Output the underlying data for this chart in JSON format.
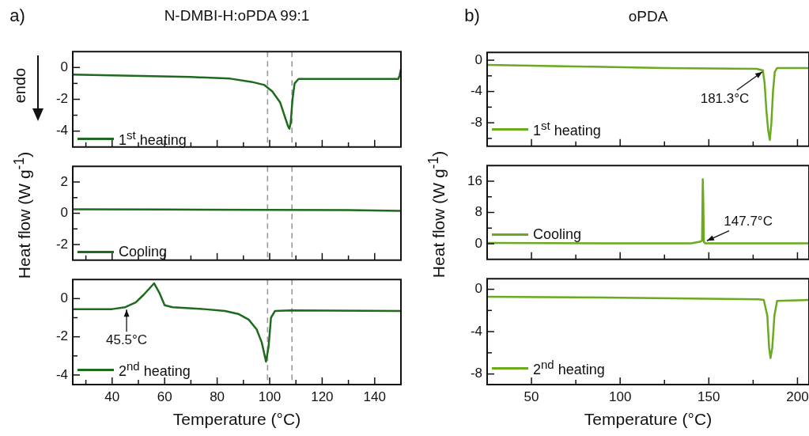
{
  "chart_data": [
    {
      "type": "line",
      "title": "N-DMBI-H:oPDA 99:1",
      "annotations": [
        "a)",
        "endo"
      ],
      "tick_labels": "y",
      "legend": "bottom left",
      "xlim": [
        25,
        150
      ],
      "ylim": [
        -5,
        1
      ],
      "xticks": [
        {
          "value": 30,
          "label": null
        },
        40,
        {
          "value": 50,
          "label": null
        },
        60,
        {
          "value": 70,
          "label": null
        },
        80,
        {
          "value": 90,
          "label": null
        },
        100,
        {
          "value": 110,
          "label": null
        },
        120,
        {
          "value": 130,
          "label": null
        },
        140
      ],
      "yticks": [
        -4,
        {
          "value": -3,
          "label": null
        },
        -2,
        {
          "value": -1,
          "label": null
        },
        0
      ],
      "ref_lines": [
        {
          "axis": "x",
          "value": 99.2,
          "color": "#999999",
          "line_style": "dashed"
        },
        {
          "axis": "x",
          "value": 108.5,
          "color": "#999999",
          "line_style": "dashed"
        }
      ],
      "series": [
        {
          "name": "1$^{st}$ heating",
          "color": "#1e6b1e",
          "x": [
            25,
            40,
            55,
            70,
            85,
            93,
            98,
            101,
            104,
            106,
            107,
            107.5,
            108,
            108.7,
            109.5,
            111,
            120,
            135,
            149,
            149.5,
            150
          ],
          "values": [
            -0.45,
            -0.5,
            -0.55,
            -0.6,
            -0.7,
            -0.9,
            -1.1,
            -1.5,
            -2.2,
            -3.2,
            -3.7,
            -3.85,
            -3.5,
            -2,
            -1,
            -0.72,
            -0.72,
            -0.72,
            -0.72,
            -0.5,
            -0.1
          ]
        }
      ]
    },
    {
      "type": "line",
      "ylabel": "Heat flow (W g$^{-1}$)",
      "tick_labels": "y",
      "legend": "bottom left",
      "xlim": [
        25,
        150
      ],
      "ylim": [
        -3,
        3
      ],
      "xticks": [
        {
          "value": 30,
          "label": null
        },
        40,
        {
          "value": 50,
          "label": null
        },
        60,
        {
          "value": 70,
          "label": null
        },
        80,
        {
          "value": 90,
          "label": null
        },
        100,
        {
          "value": 110,
          "label": null
        },
        120,
        {
          "value": 130,
          "label": null
        },
        140
      ],
      "yticks": [
        -2,
        {
          "value": -1,
          "label": null
        },
        0,
        {
          "value": 1,
          "label": null
        },
        2
      ],
      "ref_lines": [
        {
          "axis": "x",
          "value": 99.2,
          "color": "#999999",
          "line_style": "dashed"
        },
        {
          "axis": "x",
          "value": 108.5,
          "color": "#999999",
          "line_style": "dashed"
        }
      ],
      "series": [
        {
          "name": "Cooling",
          "color": "#1e6b1e",
          "x": [
            25,
            60,
            100,
            130,
            150
          ],
          "values": [
            0.25,
            0.24,
            0.22,
            0.2,
            0.15
          ]
        }
      ]
    },
    {
      "type": "line",
      "xlabel": "Temperature (°C)",
      "annotations": [
        {
          "text": "45.5°C",
          "x": 45.5,
          "y": -0.45
        }
      ],
      "legend": "bottom left",
      "xlim": [
        25,
        150
      ],
      "ylim": [
        -4.5,
        1
      ],
      "xticks": [
        {
          "value": 30,
          "label": null
        },
        40,
        {
          "value": 50,
          "label": null
        },
        60,
        {
          "value": 70,
          "label": null
        },
        80,
        {
          "value": 90,
          "label": null
        },
        100,
        {
          "value": 110,
          "label": null
        },
        120,
        {
          "value": 130,
          "label": null
        },
        140
      ],
      "yticks": [
        -4,
        {
          "value": -3,
          "label": null
        },
        -2,
        {
          "value": -1,
          "label": null
        },
        0
      ],
      "ref_lines": [
        {
          "axis": "x",
          "value": 99.2,
          "color": "#999999",
          "line_style": "dashed"
        },
        {
          "axis": "x",
          "value": 108.5,
          "color": "#999999",
          "line_style": "dashed"
        }
      ],
      "series": [
        {
          "name": "2$^{nd}$ heating",
          "color": "#1e6b1e",
          "x": [
            25,
            40,
            45,
            49,
            52,
            54,
            56,
            58,
            60,
            63,
            75,
            83,
            88,
            92,
            95,
            97,
            98.6,
            99.6,
            100.5,
            102,
            108,
            150
          ],
          "values": [
            -0.55,
            -0.55,
            -0.45,
            -0.2,
            0.2,
            0.5,
            0.8,
            0.3,
            -0.35,
            -0.45,
            -0.55,
            -0.65,
            -0.8,
            -1.1,
            -1.6,
            -2.3,
            -3.3,
            -2.5,
            -1,
            -0.65,
            -0.62,
            -0.65
          ]
        }
      ]
    },
    {
      "type": "line",
      "title": "oPDA",
      "annotations": [
        "b)",
        {
          "text": "181.3°C",
          "x": 181.3,
          "y": -1.3
        }
      ],
      "tick_labels": "y",
      "legend": "bottom left",
      "xlim": [
        25,
        206.5
      ],
      "ylim": [
        -11,
        1
      ],
      "xticks": [
        50,
        {
          "value": 75,
          "label": null
        },
        100,
        {
          "value": 125,
          "label": null
        },
        150,
        {
          "value": 175,
          "label": null
        },
        200
      ],
      "yticks": [
        {
          "value": -10,
          "label": null
        },
        -8,
        {
          "value": -6,
          "label": null
        },
        -4,
        {
          "value": -2,
          "label": null
        },
        0
      ],
      "series": [
        {
          "name": "1$^{st}$ heating",
          "color": "#6aaa1e",
          "x": [
            25,
            75,
            125,
            177,
            180.5,
            181.5,
            182.5,
            183.5,
            184.4,
            185.3,
            186.2,
            187.2,
            188.5,
            206.5
          ],
          "values": [
            -0.6,
            -0.8,
            -1,
            -1.1,
            -1.3,
            -3,
            -6.5,
            -9,
            -10.2,
            -8,
            -4,
            -1.5,
            -1,
            -1
          ]
        }
      ]
    },
    {
      "type": "line",
      "ylabel": "Heat flow (W g$^{-1}$)",
      "annotations": [
        {
          "text": "147.7°C",
          "x": 147.7,
          "y": 0.5
        }
      ],
      "tick_labels": "y",
      "legend": "bottom left",
      "xlim": [
        25,
        206.5
      ],
      "ylim": [
        -4,
        20
      ],
      "xticks": [
        50,
        {
          "value": 75,
          "label": null
        },
        100,
        {
          "value": 125,
          "label": null
        },
        150,
        {
          "value": 175,
          "label": null
        },
        200
      ],
      "yticks": [
        0,
        {
          "value": 4,
          "label": null
        },
        8,
        {
          "value": 12,
          "label": null
        },
        16
      ],
      "series": [
        {
          "name": "Cooling",
          "color": "#6aaa1e",
          "x": [
            25,
            100,
            140,
            145,
            146.2,
            146.6,
            146.9,
            147.2,
            148,
            206.5
          ],
          "values": [
            0.2,
            0.1,
            0.1,
            0.5,
            0.8,
            16.5,
            11,
            0.5,
            0.1,
            0.1
          ]
        }
      ]
    },
    {
      "type": "line",
      "xlabel": "Temperature (°C)",
      "legend": "bottom left",
      "xlim": [
        25,
        206.5
      ],
      "ylim": [
        -9,
        1
      ],
      "xticks": [
        50,
        {
          "value": 75,
          "label": null
        },
        100,
        {
          "value": 125,
          "label": null
        },
        150,
        {
          "value": 175,
          "label": null
        },
        200
      ],
      "yticks": [
        -8,
        {
          "value": -6,
          "label": null
        },
        -4,
        {
          "value": -2,
          "label": null
        },
        0
      ],
      "series": [
        {
          "name": "2$^{nd}$ heating",
          "color": "#6aaa1e",
          "x": [
            25,
            100,
            178,
            181,
            183,
            184,
            184.8,
            185.8,
            187,
            188.5,
            206.5
          ],
          "values": [
            -0.7,
            -0.8,
            -0.95,
            -1,
            -2.5,
            -5.5,
            -6.5,
            -5.5,
            -2.5,
            -1.1,
            -1
          ]
        }
      ]
    }
  ]
}
